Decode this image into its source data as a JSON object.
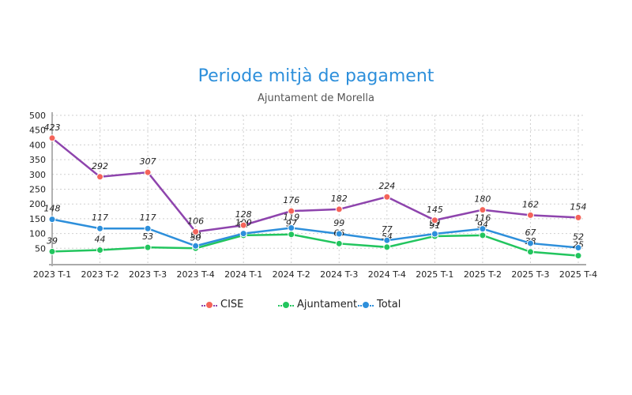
{
  "chart_data": {
    "type": "line",
    "title": "Periode mitjà de pagament",
    "subtitle": "Ajuntament de Morella",
    "xlabel": "",
    "ylabel": "",
    "categories": [
      "2023 T-1",
      "2023 T-2",
      "2023 T-3",
      "2023 T-4",
      "2024 T-1",
      "2024 T-2",
      "2024 T-3",
      "2024 T-4",
      "2025 T-1",
      "2025 T-2",
      "2025 T-3",
      "2025 T-4"
    ],
    "yticks": [
      50,
      100,
      150,
      200,
      250,
      300,
      350,
      400,
      450,
      500
    ],
    "ylim": [
      0,
      500
    ],
    "grid": "dotted",
    "legend_position": "bottom",
    "series": [
      {
        "name": "CISE",
        "line_color": "#8e44ad",
        "marker_color": "#f4645a",
        "values": [
          423,
          292,
          307,
          106,
          128,
          176,
          182,
          224,
          145,
          180,
          162,
          154
        ]
      },
      {
        "name": "Ajuntament",
        "line_color": "#22c55e",
        "marker_color": "#22c55e",
        "values": [
          39,
          44,
          53,
          50,
          94,
          97,
          66,
          54,
          91,
          94,
          38,
          25
        ]
      },
      {
        "name": "Total",
        "line_color": "#2d8fdb",
        "marker_color": "#2d8fdb",
        "values": [
          148,
          117,
          117,
          58,
          100,
          119,
          99,
          77,
          99,
          116,
          67,
          52
        ]
      }
    ]
  }
}
